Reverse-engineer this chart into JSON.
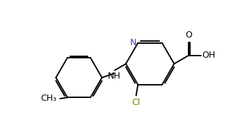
{
  "bg_color": "#ffffff",
  "line_color": "#000000",
  "n_color": "#4040b0",
  "cl_color": "#808000",
  "bond_lw": 1.4,
  "figsize": [
    3.32,
    1.77
  ],
  "dpi": 100,
  "xlim": [
    0.0,
    10.0
  ],
  "ylim": [
    0.5,
    5.5
  ]
}
